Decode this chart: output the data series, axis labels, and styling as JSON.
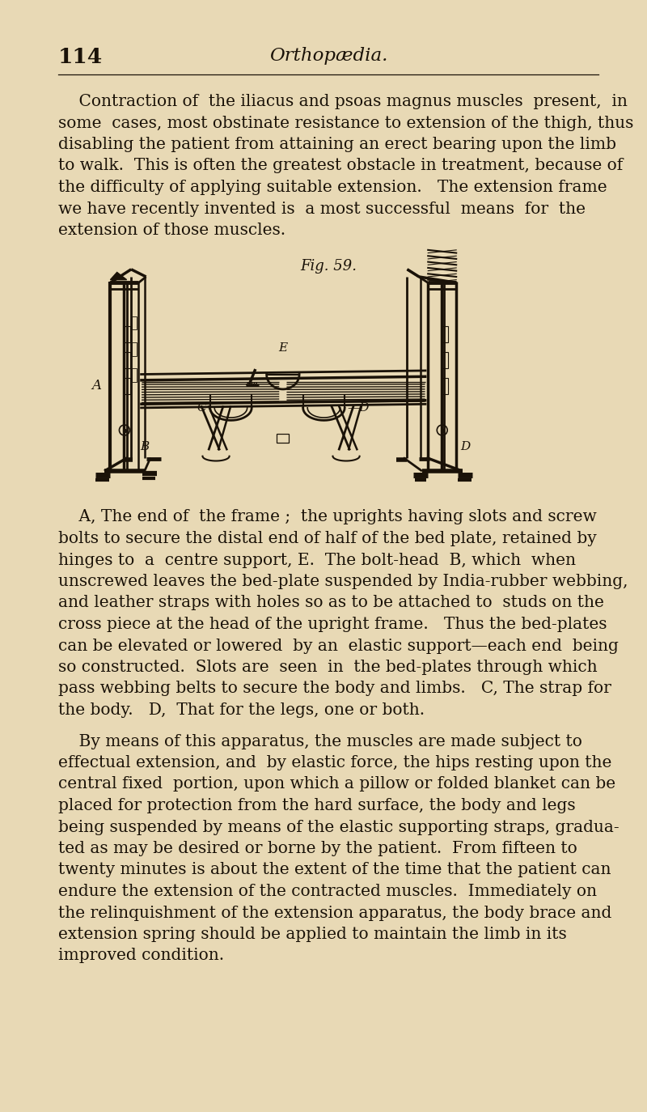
{
  "background_color": "#e8d9b5",
  "page_number": "114",
  "header": "Orthopædia.",
  "fig_label": "Fig. 59.",
  "paragraph1_lines": [
    "    Contraction of  the iliacus and psoas magnus muscles  present,  in",
    "some  cases, most obstinate resistance to extension of the thigh, thus",
    "disabling the patient from attaining an erect bearing upon the limb",
    "to walk.  This is often the greatest obstacle in treatment, because of",
    "the difficulty of applying suitable extension.   The extension frame",
    "we have recently invented is  a most successful  means  for  the",
    "extension of those muscles."
  ],
  "paragraph2_lines": [
    "    A, The end of  the frame ;  the uprights having slots and screw",
    "bolts to secure the distal end of half of the bed plate, retained by",
    "hinges to  a  centre support, E.  The bolt-head  B, which  when",
    "unscrewed leaves the bed-plate suspended by India-rubber webbing,",
    "and leather straps with holes so as to be attached to  studs on the",
    "cross piece at the head of the upright frame.   Thus the bed-plates",
    "can be elevated or lowered  by an  elastic support—each end  being",
    "so constructed.  Slots are  seen  in  the bed-plates through which",
    "pass webbing belts to secure the body and limbs.   C, The strap for",
    "the body.   D,  That for the legs, one or both."
  ],
  "paragraph3_lines": [
    "    By means of this apparatus, the muscles are made subject to",
    "effectual extension, and  by elastic force, the hips resting upon the",
    "central fixed  portion, upon which a pillow or folded blanket can be",
    "placed for protection from the hard surface, the body and legs",
    "being suspended by means of the elastic supporting straps, gradua-",
    "ted as may be desired or borne by the patient.  From fifteen to",
    "twenty minutes is about the extent of the time that the patient can",
    "endure the extension of the contracted muscles.  Immediately on",
    "the relinquishment of the extension apparatus, the body brace and",
    "extension spring should be applied to maintain the limb in its",
    "improved condition."
  ],
  "text_color": "#1a1208",
  "font_size_body": 14.5,
  "font_size_header": 16.5,
  "font_size_page_num": 19,
  "font_size_fig_label": 13,
  "line_color": "#1a1208",
  "fig_image_color": "#1a1208"
}
